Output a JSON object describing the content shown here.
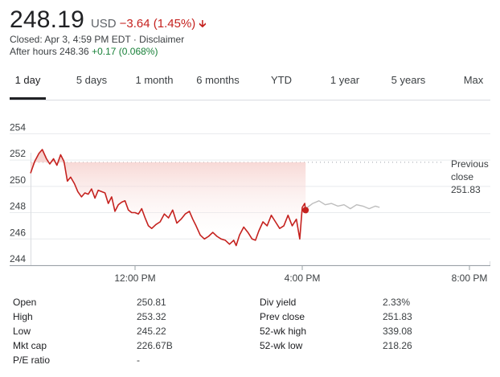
{
  "quote": {
    "price": "248.19",
    "currency": "USD",
    "change": "−3.64 (1.45%)",
    "closed_text": "Closed: Apr 3, 4:59 PM EDT · Disclaimer",
    "after_hours_prefix": "After hours 248.36",
    "after_hours_change": "+0.17 (0.068%)"
  },
  "tabs": [
    "1 day",
    "5 days",
    "1 month",
    "6 months",
    "YTD",
    "1 year",
    "5 years",
    "Max"
  ],
  "active_tab": "1 day",
  "colors": {
    "negative": "#c5221f",
    "positive": "#188038",
    "after_hours_line": "#bdbdbd",
    "fill_top": "#f4c7c3"
  },
  "chart_data": {
    "type": "line",
    "x_ticks": [
      "12:00 PM",
      "4:00 PM",
      "8:00 PM"
    ],
    "y_ticks": [
      254,
      252,
      250,
      248,
      246,
      244
    ],
    "ylim": [
      244,
      255
    ],
    "previous_close_label": [
      "Previous",
      "close",
      "251.83"
    ],
    "previous_close": 251.83,
    "x_unit": "hours",
    "xlim": [
      9.5,
      20.5
    ],
    "series": [
      {
        "values": [
          [
            9.5,
            251.0
          ],
          [
            9.6,
            251.9
          ],
          [
            9.7,
            252.5
          ],
          [
            9.78,
            252.8
          ],
          [
            9.88,
            252.1
          ],
          [
            9.96,
            251.7
          ],
          [
            10.05,
            252.1
          ],
          [
            10.13,
            251.6
          ],
          [
            10.22,
            252.4
          ],
          [
            10.3,
            251.9
          ],
          [
            10.38,
            250.4
          ],
          [
            10.46,
            250.7
          ],
          [
            10.55,
            250.2
          ],
          [
            10.63,
            249.6
          ],
          [
            10.72,
            249.2
          ],
          [
            10.8,
            249.5
          ],
          [
            10.88,
            249.4
          ],
          [
            10.96,
            249.8
          ],
          [
            11.04,
            249.1
          ],
          [
            11.12,
            249.7
          ],
          [
            11.2,
            249.6
          ],
          [
            11.28,
            249.5
          ],
          [
            11.36,
            248.7
          ],
          [
            11.44,
            249.2
          ],
          [
            11.52,
            248.1
          ],
          [
            11.6,
            248.6
          ],
          [
            11.68,
            248.8
          ],
          [
            11.76,
            248.9
          ],
          [
            11.84,
            248.2
          ],
          [
            11.92,
            248.0
          ],
          [
            12.0,
            248.0
          ],
          [
            12.08,
            247.9
          ],
          [
            12.16,
            248.3
          ],
          [
            12.24,
            247.6
          ],
          [
            12.32,
            247.0
          ],
          [
            12.4,
            246.8
          ],
          [
            12.5,
            247.1
          ],
          [
            12.6,
            247.3
          ],
          [
            12.7,
            247.9
          ],
          [
            12.8,
            247.6
          ],
          [
            12.9,
            248.2
          ],
          [
            13.0,
            247.2
          ],
          [
            13.1,
            247.5
          ],
          [
            13.2,
            247.9
          ],
          [
            13.3,
            248.1
          ],
          [
            13.38,
            247.5
          ],
          [
            13.46,
            247.0
          ],
          [
            13.56,
            246.3
          ],
          [
            13.66,
            246.0
          ],
          [
            13.76,
            246.2
          ],
          [
            13.86,
            246.5
          ],
          [
            13.96,
            246.2
          ],
          [
            14.06,
            246.0
          ],
          [
            14.16,
            245.9
          ],
          [
            14.26,
            245.6
          ],
          [
            14.36,
            245.9
          ],
          [
            14.42,
            245.5
          ],
          [
            14.5,
            246.3
          ],
          [
            14.6,
            246.9
          ],
          [
            14.7,
            246.5
          ],
          [
            14.8,
            246.0
          ],
          [
            14.88,
            245.9
          ],
          [
            14.96,
            246.6
          ],
          [
            15.06,
            247.3
          ],
          [
            15.16,
            247.0
          ],
          [
            15.26,
            247.8
          ],
          [
            15.36,
            247.3
          ],
          [
            15.46,
            246.8
          ],
          [
            15.56,
            247.0
          ],
          [
            15.66,
            247.8
          ],
          [
            15.76,
            247.0
          ],
          [
            15.86,
            247.5
          ],
          [
            15.94,
            246.0
          ],
          [
            16.0,
            248.4
          ],
          [
            16.06,
            248.7
          ],
          [
            16.08,
            248.1
          ]
        ]
      },
      {
        "values": [
          [
            16.08,
            248.3
          ],
          [
            16.25,
            248.7
          ],
          [
            16.4,
            248.9
          ],
          [
            16.55,
            248.6
          ],
          [
            16.7,
            248.7
          ],
          [
            16.85,
            248.5
          ],
          [
            17.0,
            248.6
          ],
          [
            17.15,
            248.3
          ],
          [
            17.3,
            248.6
          ],
          [
            17.45,
            248.5
          ],
          [
            17.6,
            248.3
          ],
          [
            17.75,
            248.5
          ],
          [
            17.85,
            248.4
          ]
        ]
      }
    ],
    "last_point": [
      16.08,
      248.19
    ]
  },
  "stats": {
    "left": [
      {
        "label": "Open",
        "value": "250.81"
      },
      {
        "label": "High",
        "value": "253.32"
      },
      {
        "label": "Low",
        "value": "245.22"
      },
      {
        "label": "Mkt cap",
        "value": "226.67B"
      },
      {
        "label": "P/E ratio",
        "value": "-"
      }
    ],
    "right": [
      {
        "label": "Div yield",
        "value": "2.33%"
      },
      {
        "label": "Prev close",
        "value": "251.83"
      },
      {
        "label": "52-wk high",
        "value": "339.08"
      },
      {
        "label": "52-wk low",
        "value": "218.26"
      }
    ]
  }
}
